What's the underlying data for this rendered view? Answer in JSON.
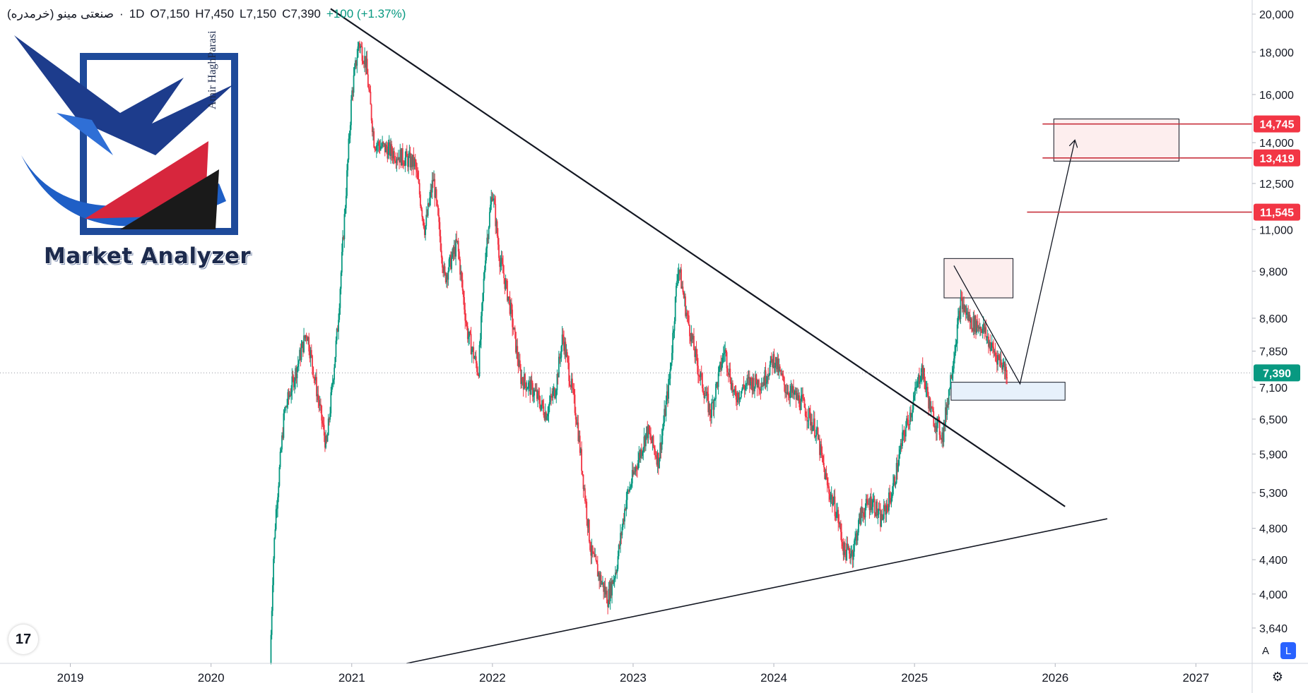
{
  "header": {
    "symbol": "صنعتی مینو (خرمدره)",
    "sep": "·",
    "interval": "1D",
    "open_k": "O",
    "open": "7,150",
    "high_k": "H",
    "high": "7,450",
    "low_k": "L",
    "low": "7,150",
    "close_k": "C",
    "close": "7,390",
    "change": "+100 (+1.37%)"
  },
  "logo": {
    "title": "Market Analyzer",
    "author": "Amir HaghParasi"
  },
  "branding": {
    "tv_icon": "tradingview-logo-icon",
    "tv_label": "17"
  },
  "scale_buttons": {
    "auto": "A",
    "log": "L"
  },
  "colors": {
    "up": "#089981",
    "down": "#f23645",
    "level": "#c8323e",
    "current": "#089981",
    "zone_top": "#fdeeee",
    "zone_bottom": "#e7f1fb"
  },
  "chart_data": {
    "type": "candlestick",
    "title": "",
    "x_range": [
      2018.5,
      2027.4
    ],
    "y_scale": "log",
    "y_range": [
      3300,
      20800
    ],
    "x_ticks": [
      {
        "value": 2019,
        "label": "2019"
      },
      {
        "value": 2020,
        "label": "2020"
      },
      {
        "value": 2021,
        "label": "2021"
      },
      {
        "value": 2022,
        "label": "2022"
      },
      {
        "value": 2023,
        "label": "2023"
      },
      {
        "value": 2024,
        "label": "2024"
      },
      {
        "value": 2025,
        "label": "2025"
      },
      {
        "value": 2026,
        "label": "2026"
      },
      {
        "value": 2027,
        "label": "2027"
      }
    ],
    "y_ticks": [
      {
        "value": 20000,
        "label": "20,000"
      },
      {
        "value": 18000,
        "label": "18,000"
      },
      {
        "value": 16000,
        "label": "16,000"
      },
      {
        "value": 14000,
        "label": "14,000"
      },
      {
        "value": 12500,
        "label": "12,500"
      },
      {
        "value": 11000,
        "label": "11,000"
      },
      {
        "value": 9800,
        "label": "9,800"
      },
      {
        "value": 8600,
        "label": "8,600"
      },
      {
        "value": 7850,
        "label": "7,850"
      },
      {
        "value": 7100,
        "label": "7,100"
      },
      {
        "value": 6500,
        "label": "6,500"
      },
      {
        "value": 5900,
        "label": "5,900"
      },
      {
        "value": 5300,
        "label": "5,300"
      },
      {
        "value": 4800,
        "label": "4,800"
      },
      {
        "value": 4400,
        "label": "4,400"
      },
      {
        "value": 4000,
        "label": "4,000"
      },
      {
        "value": 3640,
        "label": "3,640"
      }
    ],
    "price_path": [
      [
        2020.42,
        3300
      ],
      [
        2020.44,
        4300
      ],
      [
        2020.46,
        5000
      ],
      [
        2020.52,
        6600
      ],
      [
        2020.6,
        7400
      ],
      [
        2020.68,
        8300
      ],
      [
        2020.76,
        6900
      ],
      [
        2020.82,
        6000
      ],
      [
        2020.9,
        8400
      ],
      [
        2020.95,
        11500
      ],
      [
        2021.0,
        16000
      ],
      [
        2021.05,
        18500
      ],
      [
        2021.1,
        17500
      ],
      [
        2021.16,
        14000
      ],
      [
        2021.3,
        13600
      ],
      [
        2021.45,
        13200
      ],
      [
        2021.52,
        11000
      ],
      [
        2021.58,
        12700
      ],
      [
        2021.66,
        9600
      ],
      [
        2021.75,
        10600
      ],
      [
        2021.82,
        8300
      ],
      [
        2021.9,
        7400
      ],
      [
        2021.95,
        10300
      ],
      [
        2022.0,
        12300
      ],
      [
        2022.05,
        10200
      ],
      [
        2022.12,
        9000
      ],
      [
        2022.2,
        7300
      ],
      [
        2022.3,
        7000
      ],
      [
        2022.38,
        6600
      ],
      [
        2022.45,
        7100
      ],
      [
        2022.5,
        8200
      ],
      [
        2022.55,
        7300
      ],
      [
        2022.6,
        6500
      ],
      [
        2022.65,
        5400
      ],
      [
        2022.7,
        4500
      ],
      [
        2022.76,
        4200
      ],
      [
        2022.82,
        3950
      ],
      [
        2022.88,
        4300
      ],
      [
        2022.95,
        5200
      ],
      [
        2023.02,
        5700
      ],
      [
        2023.1,
        6300
      ],
      [
        2023.18,
        5800
      ],
      [
        2023.26,
        7300
      ],
      [
        2023.32,
        10000
      ],
      [
        2023.38,
        8700
      ],
      [
        2023.46,
        7500
      ],
      [
        2023.55,
        6600
      ],
      [
        2023.65,
        7900
      ],
      [
        2023.72,
        6900
      ],
      [
        2023.82,
        7200
      ],
      [
        2023.92,
        7200
      ],
      [
        2024.0,
        7700
      ],
      [
        2024.08,
        7100
      ],
      [
        2024.2,
        6800
      ],
      [
        2024.3,
        6300
      ],
      [
        2024.38,
        5400
      ],
      [
        2024.45,
        5000
      ],
      [
        2024.5,
        4500
      ],
      [
        2024.56,
        4500
      ],
      [
        2024.62,
        5000
      ],
      [
        2024.7,
        5200
      ],
      [
        2024.76,
        4900
      ],
      [
        2024.84,
        5300
      ],
      [
        2024.92,
        6200
      ],
      [
        2024.98,
        6700
      ],
      [
        2025.05,
        7500
      ],
      [
        2025.12,
        6600
      ],
      [
        2025.2,
        6200
      ],
      [
        2025.28,
        7800
      ],
      [
        2025.33,
        9000
      ],
      [
        2025.4,
        8500
      ],
      [
        2025.48,
        8400
      ],
      [
        2025.55,
        7900
      ],
      [
        2025.62,
        7600
      ],
      [
        2025.66,
        7390
      ]
    ],
    "series": [
      {
        "name": "",
        "last": 7390,
        "last_label": "7,390"
      }
    ],
    "trendlines": [
      {
        "id": "upper-trendline",
        "from": [
          2020.85,
          20300
        ],
        "to": [
          2026.07,
          5100
        ]
      },
      {
        "id": "lower-trendline",
        "from": [
          2021.39,
          3300
        ],
        "to": [
          2026.37,
          4930
        ]
      }
    ],
    "levels": [
      {
        "value": 14745,
        "label": "14,745",
        "from_x": 2025.91
      },
      {
        "value": 13419,
        "label": "13,419",
        "from_x": 2025.91
      },
      {
        "value": 11545,
        "label": "11,545",
        "from_x": 2025.8
      }
    ],
    "zones": [
      {
        "id": "target-zone",
        "x": [
          2025.99,
          2026.88
        ],
        "y": [
          13300,
          14950
        ],
        "fill": "zone_top"
      },
      {
        "id": "resistance-zone",
        "x": [
          2025.21,
          2025.7
        ],
        "y": [
          9100,
          10150
        ],
        "fill": "zone_top"
      },
      {
        "id": "support-zone",
        "x": [
          2025.26,
          2026.07
        ],
        "y": [
          6850,
          7200
        ],
        "fill": "zone_bottom"
      }
    ],
    "projection": [
      [
        2025.28,
        9950
      ],
      [
        2025.75,
        7170
      ],
      [
        2026.14,
        14100
      ]
    ]
  }
}
